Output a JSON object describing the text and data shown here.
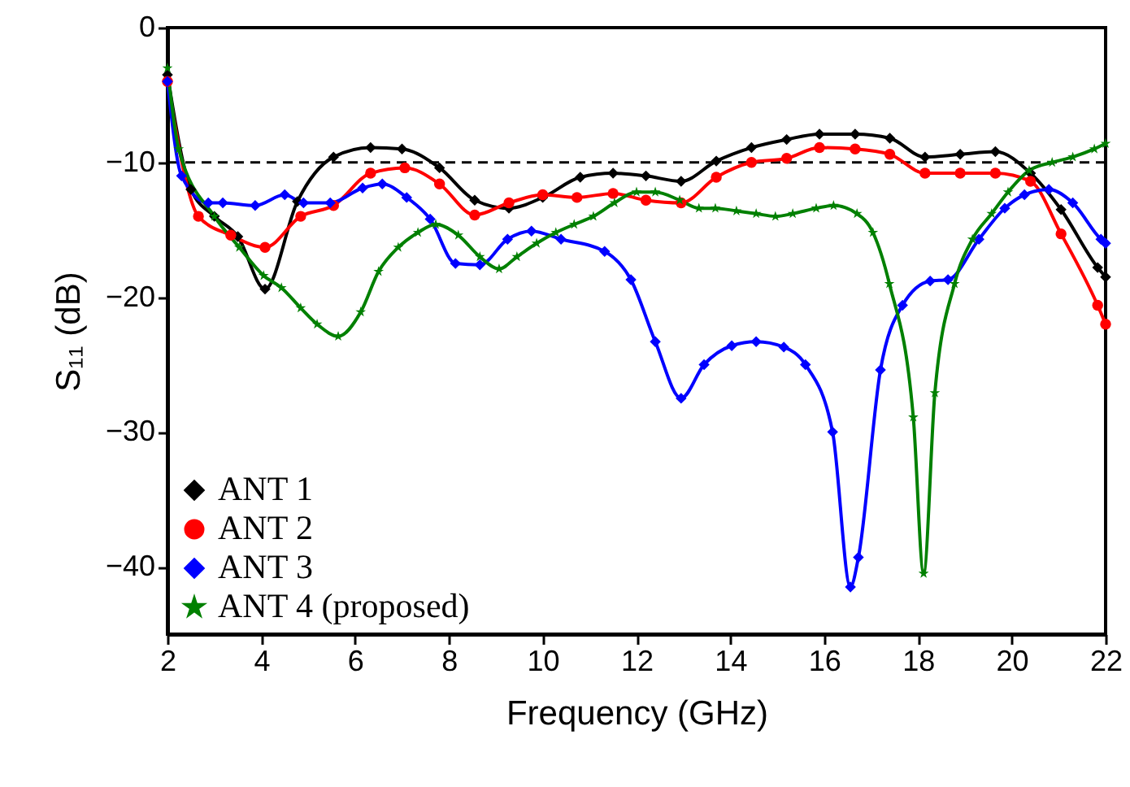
{
  "chart_data": {
    "type": "line",
    "xlabel": "Frequency (GHz)",
    "ylabel": "S₁₁ (dB)",
    "xlim": [
      2,
      22
    ],
    "ylim": [
      -45,
      0
    ],
    "xticks": [
      2,
      4,
      6,
      8,
      10,
      12,
      14,
      16,
      18,
      20,
      22
    ],
    "yticks": [
      0,
      -10,
      -20,
      -30,
      -40
    ],
    "grid": false,
    "legend": "bottom left",
    "line_style": "solid",
    "ref_lines": [
      {
        "axis": "y",
        "value": -10,
        "color": "#000000",
        "line_style": "dashed"
      }
    ],
    "series": [
      {
        "name": "ANT 1",
        "color": "#000000",
        "marker": "diamond",
        "x": [
          2,
          2.5,
          3,
          3.5,
          4.08,
          4.77,
          5.54,
          6.33,
          7.0,
          7.8,
          8.55,
          9.28,
          10.0,
          10.8,
          11.5,
          12.2,
          12.95,
          13.7,
          14.45,
          15.2,
          15.9,
          16.66,
          17.4,
          18.15,
          18.9,
          19.65,
          20.4,
          21.05,
          21.83,
          22
        ],
        "values": [
          -3.5,
          -12,
          -14,
          -15.5,
          -19.4,
          -12.9,
          -9.6,
          -8.9,
          -9.0,
          -10.4,
          -12.8,
          -13.4,
          -12.6,
          -11.1,
          -10.8,
          -11.0,
          -11.4,
          -9.9,
          -8.9,
          -8.3,
          -7.9,
          -7.9,
          -8.2,
          -9.6,
          -9.4,
          -9.2,
          -10.8,
          -13.5,
          -17.8,
          -18.5
        ]
      },
      {
        "name": "ANT 2",
        "color": "#ff0000",
        "marker": "circle",
        "x": [
          2,
          2.66,
          3.35,
          4.08,
          4.84,
          5.54,
          6.33,
          7.06,
          7.8,
          8.55,
          9.28,
          10.0,
          10.73,
          11.5,
          12.2,
          12.95,
          13.7,
          14.45,
          15.2,
          15.9,
          16.66,
          17.4,
          18.15,
          18.9,
          19.65,
          20.4,
          21.05,
          21.83,
          22
        ],
        "values": [
          -4,
          -14,
          -15.4,
          -16.3,
          -14,
          -13.2,
          -10.8,
          -10.4,
          -11.6,
          -13.9,
          -13.0,
          -12.4,
          -12.6,
          -12.3,
          -12.8,
          -13.0,
          -11.1,
          -10.0,
          -9.7,
          -8.9,
          -9.0,
          -9.4,
          -10.8,
          -10.8,
          -10.8,
          -11.4,
          -15.3,
          -20.6,
          -22
        ]
      },
      {
        "name": "ANT 3",
        "color": "#0000ff",
        "marker": "diamond",
        "x": [
          2,
          2.3,
          2.87,
          3.18,
          3.87,
          4.5,
          4.9,
          5.47,
          6.16,
          6.58,
          7.1,
          7.6,
          8.14,
          8.66,
          9.25,
          9.76,
          10.39,
          11.32,
          11.88,
          12.4,
          12.95,
          13.44,
          14.03,
          14.55,
          15.14,
          15.6,
          16.18,
          16.56,
          16.73,
          17.2,
          17.67,
          18.26,
          18.64,
          19.3,
          19.85,
          20.27,
          20.79,
          21.3,
          21.9,
          22
        ],
        "values": [
          -4,
          -11,
          -13,
          -13,
          -13.2,
          -12.4,
          -13,
          -13,
          -11.9,
          -11.6,
          -12.6,
          -14.2,
          -17.5,
          -17.6,
          -15.7,
          -15.1,
          -15.7,
          -16.6,
          -18.7,
          -23.3,
          -27.5,
          -25,
          -23.6,
          -23.3,
          -23.7,
          -25,
          -30,
          -41.5,
          -39.3,
          -25.4,
          -20.6,
          -18.8,
          -18.7,
          -15.7,
          -13.4,
          -12.4,
          -12,
          -13,
          -15.7,
          -16
        ]
      },
      {
        "name": "ANT 4 (proposed)",
        "color": "#008000",
        "marker": "star",
        "x": [
          2,
          2.24,
          3.0,
          3.53,
          4.05,
          4.43,
          4.84,
          5.19,
          5.64,
          6.12,
          6.5,
          6.92,
          7.34,
          7.72,
          8.2,
          8.66,
          9.07,
          9.45,
          9.87,
          10.28,
          10.67,
          11.08,
          11.53,
          12.0,
          12.4,
          12.92,
          13.33,
          13.68,
          14.13,
          14.55,
          14.96,
          15.33,
          15.83,
          16.2,
          16.7,
          17.04,
          17.39,
          17.9,
          18.12,
          18.36,
          18.78,
          19.16,
          19.57,
          19.92,
          20.37,
          20.86,
          21.3,
          21.76,
          22
        ],
        "values": [
          -3,
          -9,
          -14,
          -16.3,
          -18.4,
          -19.3,
          -20.8,
          -22,
          -22.9,
          -21.1,
          -18.1,
          -16.3,
          -15.2,
          -14.6,
          -15.4,
          -17,
          -17.9,
          -17,
          -16,
          -15.2,
          -14.6,
          -14,
          -13,
          -12.2,
          -12.2,
          -12.8,
          -13.4,
          -13.4,
          -13.6,
          -13.8,
          -14,
          -13.8,
          -13.4,
          -13.2,
          -13.8,
          -15.2,
          -19,
          -28.9,
          -40.5,
          -27.1,
          -19,
          -15.7,
          -13.8,
          -12.2,
          -10.6,
          -10,
          -9.6,
          -9,
          -8.6
        ]
      }
    ]
  }
}
